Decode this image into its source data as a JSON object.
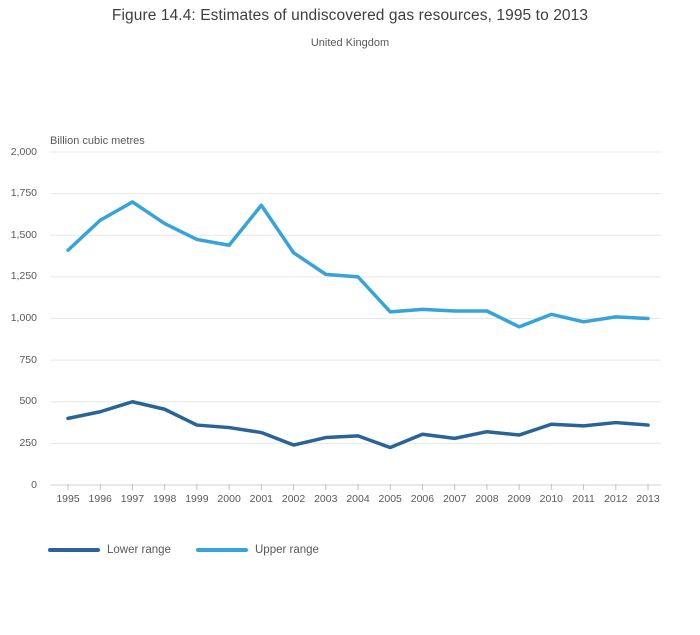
{
  "chart_data": {
    "type": "line",
    "title": "Figure 14.4: Estimates of undiscovered gas resources, 1995 to 2013",
    "subtitle": "United Kingdom",
    "ylabel": "Billion cubic metres",
    "xlabel": "",
    "x": [
      1995,
      1996,
      1997,
      1998,
      1999,
      2000,
      2001,
      2002,
      2003,
      2004,
      2005,
      2006,
      2007,
      2008,
      2009,
      2010,
      2011,
      2012,
      2013
    ],
    "series": [
      {
        "name": "Lower range",
        "color": "#2a6496",
        "values": [
          400,
          440,
          500,
          455,
          360,
          345,
          315,
          240,
          285,
          295,
          225,
          305,
          280,
          320,
          300,
          365,
          355,
          375,
          360
        ]
      },
      {
        "name": "Upper range",
        "color": "#36a3d9",
        "values": [
          1410,
          1590,
          1700,
          1570,
          1475,
          1440,
          1680,
          1395,
          1265,
          1250,
          1040,
          1055,
          1045,
          1045,
          950,
          1025,
          980,
          1010,
          1000
        ]
      }
    ],
    "ylim": [
      0,
      2000
    ],
    "ytick_interval": 250,
    "ytick_labels": [
      "0",
      "250",
      "500",
      "750",
      "1,000",
      "1,250",
      "1,500",
      "1,750",
      "2,000"
    ],
    "grid": true,
    "legend_position": "bottom-left"
  },
  "colors": {
    "gridline": "#e8e8e8",
    "axis_line": "#d6d6d6",
    "tick_mark": "#aec6da",
    "title_text": "#3e3e3e",
    "muted_text": "#595959"
  }
}
